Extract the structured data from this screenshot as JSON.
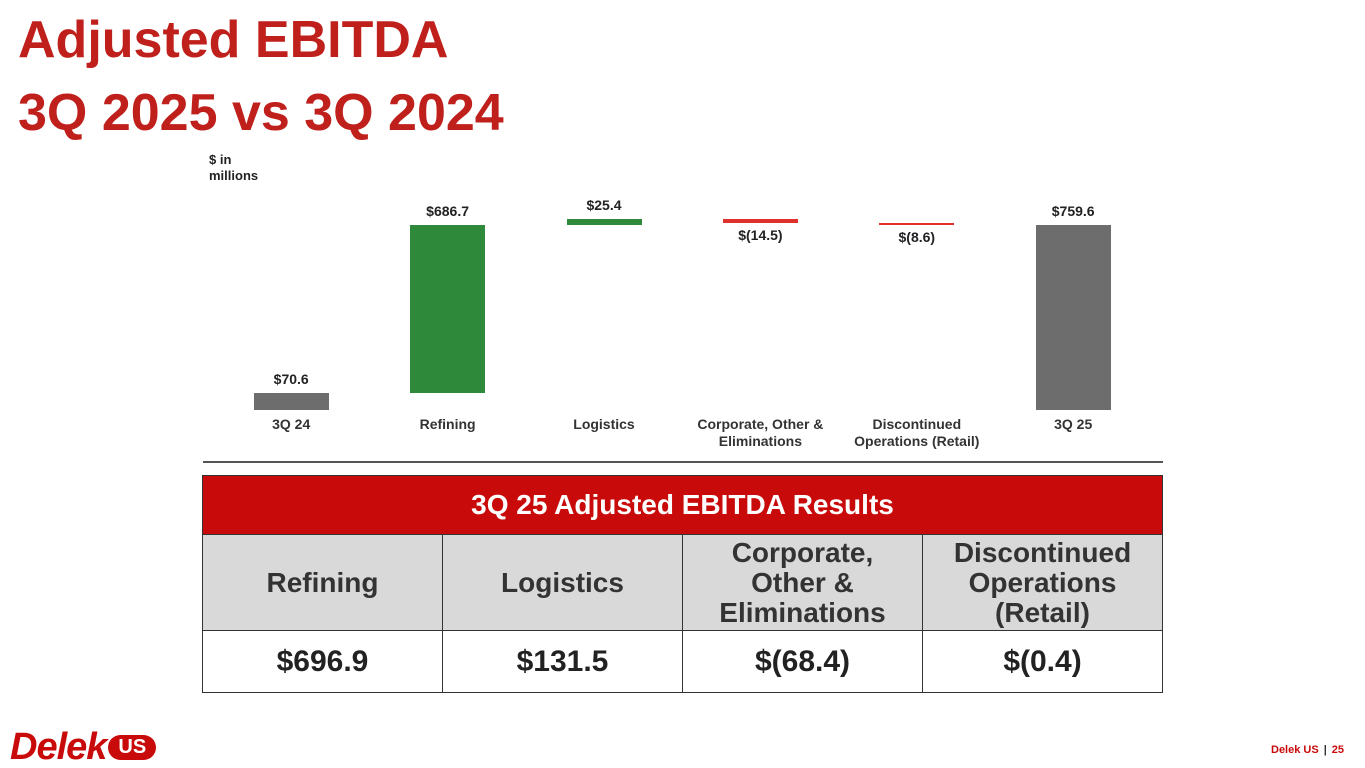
{
  "header": {
    "title_line1": "Adjusted EBITDA",
    "title_line2": "3Q 2025 vs 3Q 2024"
  },
  "chart_data": {
    "type": "waterfall",
    "y_label": "$ in millions",
    "categories": [
      "3Q 24",
      "Refining",
      "Logistics",
      "Corporate, Other & Eliminations",
      "Discontinued Operations (Retail)",
      "3Q 25"
    ],
    "values": [
      70.6,
      686.7,
      25.4,
      -14.5,
      -8.6,
      759.6
    ],
    "value_labels": [
      "$70.6",
      "$686.7",
      "$25.4",
      "$(14.5)",
      "$(8.6)",
      "$759.6"
    ],
    "measure": [
      "absolute",
      "relative",
      "relative",
      "relative",
      "relative",
      "total"
    ],
    "increase_color": "#2e8a3a",
    "decrease_color": "#e0302c",
    "total_color": "#6d6d6d"
  },
  "table": {
    "title": "3Q 25 Adjusted EBITDA Results",
    "columns": [
      "Refining",
      "Logistics",
      "Corporate, Other & Eliminations",
      "Discontinued Operations (Retail)"
    ],
    "values": [
      "$696.9",
      "$131.5",
      "$(68.4)",
      "$(0.4)"
    ]
  },
  "footer": {
    "logo_main": "Delek",
    "logo_badge": "US",
    "company": "Delek US",
    "page": "25"
  }
}
